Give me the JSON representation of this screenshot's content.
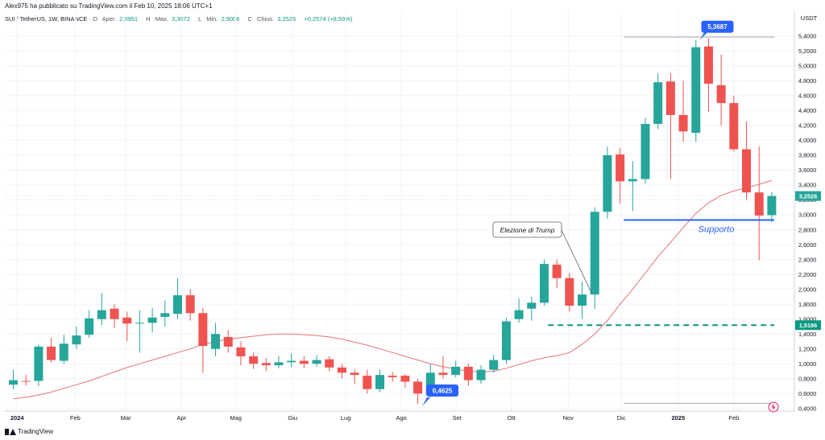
{
  "header": {
    "published_by": "Alex975 ha pubblicato su TradingView.com il Feb 10, 2025 18:06 UTC+1",
    "symbol": "SUI / TetherUS, 1W, BINANCE",
    "open_label": "O",
    "open_text": "Aper.",
    "open_value": "2,9951",
    "high_label": "H",
    "high_text": "Max.",
    "high_value": "3,3072",
    "low_label": "L",
    "low_text": "Min.",
    "low_value": "2,9006",
    "close_label": "C",
    "close_text": "Chius.",
    "close_value": "3,2526",
    "change_text": "+0,2574 (+8,59%)"
  },
  "footer": {
    "brand": "TradingView"
  },
  "colors": {
    "up": "#26a69a",
    "down": "#ef5350",
    "ma": "#e57373",
    "support": "#2962ff",
    "dashed": "#089981",
    "label_blue": "#2962ff"
  },
  "chart_data": {
    "type": "candlestick",
    "currency": "USDT",
    "ylim": [
      0.35,
      5.7
    ],
    "y_ticks": [
      "0,4000",
      "0,6000",
      "0,8000",
      "1,0000",
      "1,2000",
      "1,4000",
      "1,6000",
      "1,8000",
      "2,0000",
      "2,2000",
      "2,4000",
      "2,6000",
      "2,8000",
      "3,0000",
      "3,2000",
      "3,4000",
      "3,6000",
      "3,8000",
      "4,0000",
      "4,2000",
      "4,4000",
      "4,6000",
      "4,8000",
      "5,0000",
      "5,2000",
      "5,4000"
    ],
    "x_ticks": [
      {
        "label": "2024",
        "week": 0.3,
        "bold": true
      },
      {
        "label": "Feb",
        "week": 4.9,
        "bold": false
      },
      {
        "label": "Mar",
        "week": 8.9,
        "bold": false
      },
      {
        "label": "Apr",
        "week": 13.3,
        "bold": false
      },
      {
        "label": "Mag",
        "week": 17.6,
        "bold": false
      },
      {
        "label": "Giu",
        "week": 22.1,
        "bold": false
      },
      {
        "label": "Lug",
        "week": 26.3,
        "bold": false
      },
      {
        "label": "Ago",
        "week": 30.7,
        "bold": false
      },
      {
        "label": "Set",
        "week": 35.1,
        "bold": false
      },
      {
        "label": "Ott",
        "week": 39.4,
        "bold": false
      },
      {
        "label": "Nov",
        "week": 43.9,
        "bold": false
      },
      {
        "label": "Dic",
        "week": 48.1,
        "bold": false
      },
      {
        "label": "2025",
        "week": 52.6,
        "bold": true
      },
      {
        "label": "Feb",
        "week": 57.0,
        "bold": false
      }
    ],
    "candles": [
      [
        0.72,
        0.78,
        0.66,
        0.92
      ],
      [
        0.77,
        0.76,
        0.71,
        0.85
      ],
      [
        0.77,
        1.23,
        0.7,
        1.26
      ],
      [
        1.23,
        1.05,
        1.02,
        1.35
      ],
      [
        1.04,
        1.27,
        1.0,
        1.39
      ],
      [
        1.26,
        1.38,
        1.2,
        1.5
      ],
      [
        1.39,
        1.61,
        1.35,
        1.72
      ],
      [
        1.6,
        1.72,
        1.52,
        1.95
      ],
      [
        1.74,
        1.6,
        1.48,
        1.8
      ],
      [
        1.62,
        1.54,
        1.3,
        1.7
      ],
      [
        1.55,
        1.55,
        1.15,
        1.72
      ],
      [
        1.55,
        1.62,
        1.42,
        1.75
      ],
      [
        1.63,
        1.68,
        1.5,
        1.85
      ],
      [
        1.67,
        1.92,
        1.6,
        2.15
      ],
      [
        1.92,
        1.68,
        1.58,
        2.0
      ],
      [
        1.68,
        1.24,
        0.88,
        1.75
      ],
      [
        1.2,
        1.4,
        1.1,
        1.55
      ],
      [
        1.36,
        1.23,
        1.15,
        1.45
      ],
      [
        1.22,
        1.1,
        0.98,
        1.3
      ],
      [
        1.1,
        1.0,
        0.93,
        1.15
      ],
      [
        1.01,
        0.98,
        0.9,
        1.08
      ],
      [
        0.98,
        1.02,
        0.94,
        1.1
      ],
      [
        1.02,
        1.04,
        0.95,
        1.14
      ],
      [
        1.04,
        1.0,
        0.94,
        1.1
      ],
      [
        1.0,
        1.05,
        0.96,
        1.12
      ],
      [
        1.06,
        0.95,
        0.9,
        1.1
      ],
      [
        0.95,
        0.88,
        0.8,
        1.0
      ],
      [
        0.88,
        0.85,
        0.73,
        0.93
      ],
      [
        0.84,
        0.66,
        0.6,
        0.92
      ],
      [
        0.66,
        0.85,
        0.62,
        0.92
      ],
      [
        0.84,
        0.82,
        0.76,
        0.89
      ],
      [
        0.84,
        0.76,
        0.68,
        0.86
      ],
      [
        0.76,
        0.6,
        0.46,
        0.8
      ],
      [
        0.6,
        0.88,
        0.55,
        1.0
      ],
      [
        0.88,
        0.85,
        0.8,
        1.1
      ],
      [
        0.85,
        0.96,
        0.82,
        1.04
      ],
      [
        0.96,
        0.78,
        0.7,
        1.0
      ],
      [
        0.78,
        0.92,
        0.73,
        0.98
      ],
      [
        0.92,
        1.05,
        0.88,
        1.12
      ],
      [
        1.05,
        1.57,
        1.0,
        1.62
      ],
      [
        1.6,
        1.72,
        1.55,
        1.88
      ],
      [
        1.74,
        1.82,
        1.58,
        1.9
      ],
      [
        1.82,
        2.34,
        1.78,
        2.4
      ],
      [
        2.33,
        2.15,
        2.02,
        2.4
      ],
      [
        2.15,
        1.78,
        1.7,
        2.22
      ],
      [
        1.78,
        1.93,
        1.6,
        2.1
      ],
      [
        1.93,
        3.04,
        1.74,
        3.1
      ],
      [
        3.04,
        3.8,
        2.95,
        3.92
      ],
      [
        3.81,
        3.45,
        3.15,
        3.9
      ],
      [
        3.45,
        3.48,
        3.05,
        3.72
      ],
      [
        3.48,
        4.22,
        3.42,
        4.3
      ],
      [
        4.22,
        4.78,
        4.15,
        4.9
      ],
      [
        4.79,
        4.34,
        3.48,
        4.9
      ],
      [
        4.34,
        4.12,
        3.98,
        4.8
      ],
      [
        4.1,
        5.25,
        3.98,
        5.35
      ],
      [
        5.26,
        4.76,
        4.38,
        5.37
      ],
      [
        4.74,
        4.5,
        4.2,
        5.15
      ],
      [
        4.5,
        3.88,
        3.85,
        4.6
      ],
      [
        3.88,
        3.3,
        3.2,
        4.25
      ],
      [
        3.3,
        2.99,
        2.39,
        3.92
      ],
      [
        2.995,
        3.2526,
        2.9006,
        3.3072
      ]
    ],
    "ma": [
      0.53,
      0.55,
      0.58,
      0.62,
      0.67,
      0.72,
      0.77,
      0.83,
      0.89,
      0.95,
      1.0,
      1.05,
      1.1,
      1.15,
      1.2,
      1.26,
      1.3,
      1.33,
      1.35,
      1.37,
      1.39,
      1.4,
      1.4,
      1.39,
      1.38,
      1.36,
      1.33,
      1.29,
      1.25,
      1.2,
      1.15,
      1.1,
      1.05,
      1.0,
      0.96,
      0.93,
      0.9,
      0.89,
      0.9,
      0.94,
      0.99,
      1.04,
      1.08,
      1.11,
      1.15,
      1.26,
      1.4,
      1.58,
      1.8,
      2.0,
      2.22,
      2.44,
      2.63,
      2.83,
      3.02,
      3.16,
      3.26,
      3.32,
      3.36,
      3.41,
      3.46
    ],
    "last_price_label": "3,2526",
    "annotations": {
      "peak": {
        "text": "5,3687",
        "week": 54.3,
        "value": 5.3687
      },
      "low": {
        "text": "0,4625",
        "week": 32.6,
        "value": 0.4625
      },
      "support": {
        "text": "Supporto",
        "value": 2.93,
        "from_week": 48.3,
        "to_week": 60.2
      },
      "dashed": {
        "text": "1,5186",
        "value": 1.5186,
        "from_week": 42.3,
        "to_week": 60.2
      },
      "trump": {
        "text": "Elezione di Trump",
        "week": 45.9,
        "value": 1.94
      },
      "top_line": {
        "value": 5.387,
        "from_week": 48.3,
        "to_week": 60.2
      },
      "bottom_line": {
        "value": 0.47,
        "from_week": 48.3,
        "to_week": 60.2
      }
    }
  }
}
